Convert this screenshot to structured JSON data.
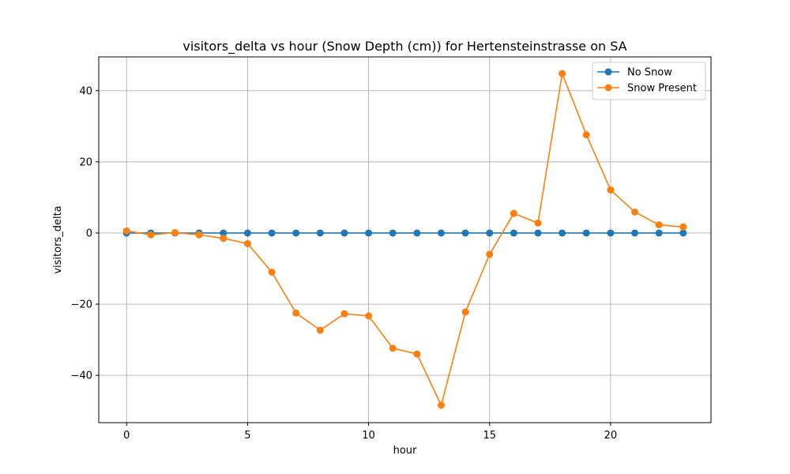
{
  "chart_data": {
    "type": "line",
    "title": "visitors_delta vs hour (Snow Depth (cm)) for Hertensteinstrasse on SA",
    "xlabel": "hour",
    "ylabel": "visitors_delta",
    "xlim": [
      -1.15,
      24.15
    ],
    "ylim": [
      -53.3,
      49.5
    ],
    "xticks": [
      0,
      5,
      10,
      15,
      20
    ],
    "yticks": [
      -40,
      -20,
      0,
      20,
      40
    ],
    "ytick_labels": [
      "−40",
      "−20",
      "0",
      "20",
      "40"
    ],
    "grid": true,
    "legend_position": "top-right",
    "x": [
      0,
      1,
      2,
      3,
      4,
      5,
      6,
      7,
      8,
      9,
      10,
      11,
      12,
      13,
      14,
      15,
      16,
      17,
      18,
      19,
      20,
      21,
      22,
      23
    ],
    "series": [
      {
        "name": "No Snow",
        "color": "#1f77b4",
        "values": [
          0,
          0,
          0,
          0,
          0,
          0,
          0,
          0,
          0,
          0,
          0,
          0,
          0,
          0,
          0,
          0,
          0,
          0,
          0,
          0,
          0,
          0,
          0,
          0
        ]
      },
      {
        "name": "Snow Present",
        "color": "#ff7f0e",
        "values": [
          0.6,
          -0.5,
          0.1,
          -0.5,
          -1.5,
          -3.0,
          -11.0,
          -22.5,
          -27.3,
          -22.7,
          -23.3,
          -32.4,
          -34.0,
          -48.4,
          -22.2,
          -6.0,
          5.5,
          2.8,
          44.8,
          27.6,
          12.1,
          5.9,
          2.3,
          1.7
        ]
      }
    ]
  }
}
